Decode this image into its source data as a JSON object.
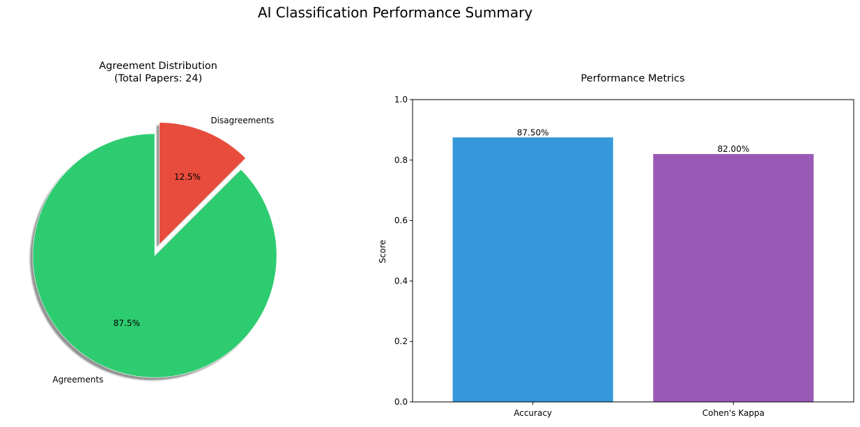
{
  "figure": {
    "suptitle": "AI Classification Performance Summary"
  },
  "chart_data": [
    {
      "type": "pie",
      "title": "Agreement Distribution\n(Total Papers: 24)",
      "title_line1": "Agreement Distribution",
      "title_line2": "(Total Papers: 24)",
      "total": 24,
      "slices": [
        {
          "label": "Disagreements",
          "value": 12.5,
          "pct_label": "12.5%",
          "color": "#e74c3c",
          "exploded": true
        },
        {
          "label": "Agreements",
          "value": 87.5,
          "pct_label": "87.5%",
          "color": "#2ecc71",
          "exploded": false
        }
      ],
      "shadow": true
    },
    {
      "type": "bar",
      "title": "Performance Metrics",
      "categories": [
        "Accuracy",
        "Cohen's Kappa"
      ],
      "values": [
        0.875,
        0.82
      ],
      "value_labels": [
        "87.50%",
        "82.00%"
      ],
      "colors": [
        "#3498db",
        "#9b59b6"
      ],
      "xlabel": "",
      "ylabel": "Score",
      "ylim": [
        0,
        1.0
      ],
      "yticks": [
        0.0,
        0.2,
        0.4,
        0.6,
        0.8,
        1.0
      ],
      "ytick_labels": [
        "0.0",
        "0.2",
        "0.4",
        "0.6",
        "0.8",
        "1.0"
      ],
      "grid": false
    }
  ]
}
